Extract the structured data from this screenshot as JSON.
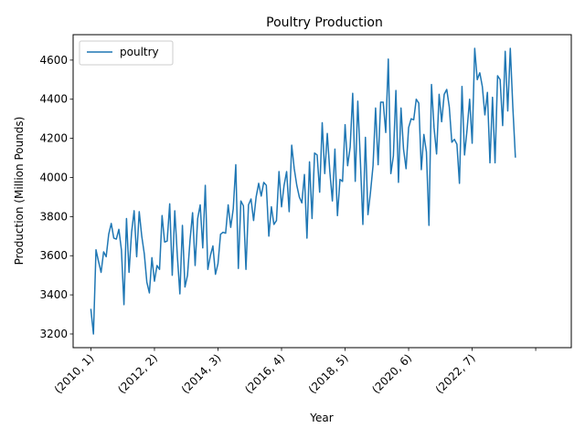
{
  "chart_data": {
    "type": "line",
    "title": "Poultry Production",
    "xlabel": "Year",
    "ylabel": "Production (Million Pounds)",
    "ylim": [
      3130,
      4730
    ],
    "xlim": [
      -7,
      189
    ],
    "grid": false,
    "legend_position": "upper-left",
    "x_ticks": [
      {
        "pos": 0,
        "label": "(2010, 1)"
      },
      {
        "pos": 25,
        "label": "(2012, 2)"
      },
      {
        "pos": 50,
        "label": "(2014, 3)"
      },
      {
        "pos": 75,
        "label": "(2016, 4)"
      },
      {
        "pos": 100,
        "label": "(2018, 5)"
      },
      {
        "pos": 125,
        "label": "(2020, 6)"
      },
      {
        "pos": 150,
        "label": "(2022, 7)"
      },
      {
        "pos": 175,
        "label": ""
      }
    ],
    "y_ticks": [
      3200,
      3400,
      3600,
      3800,
      4000,
      4200,
      4400,
      4600
    ],
    "series": [
      {
        "name": "poultry",
        "color": "#1f77b4",
        "values": [
          3325,
          3200,
          3630,
          3570,
          3515,
          3620,
          3595,
          3710,
          3765,
          3690,
          3685,
          3735,
          3630,
          3350,
          3790,
          3515,
          3720,
          3830,
          3595,
          3825,
          3700,
          3610,
          3465,
          3410,
          3590,
          3470,
          3550,
          3530,
          3805,
          3670,
          3675,
          3865,
          3500,
          3830,
          3600,
          3405,
          3755,
          3440,
          3500,
          3680,
          3820,
          3550,
          3790,
          3860,
          3640,
          3960,
          3530,
          3600,
          3650,
          3505,
          3560,
          3710,
          3720,
          3715,
          3860,
          3745,
          3840,
          4065,
          3535,
          3880,
          3855,
          3530,
          3860,
          3890,
          3780,
          3900,
          3970,
          3905,
          3975,
          3960,
          3700,
          3850,
          3760,
          3780,
          4030,
          3850,
          3960,
          4030,
          3825,
          4165,
          4045,
          3960,
          3900,
          3870,
          4015,
          3690,
          4080,
          3790,
          4125,
          4115,
          3925,
          4280,
          4020,
          4225,
          4030,
          3880,
          4145,
          3805,
          3990,
          3980,
          4270,
          4060,
          4155,
          4430,
          3980,
          4390,
          4090,
          3760,
          4205,
          3810,
          3925,
          4060,
          4355,
          4065,
          4385,
          4385,
          4230,
          4605,
          4020,
          4110,
          4445,
          3975,
          4355,
          4145,
          4045,
          4255,
          4300,
          4295,
          4400,
          4380,
          4040,
          4220,
          4130,
          3755,
          4475,
          4255,
          4120,
          4425,
          4285,
          4425,
          4450,
          4360,
          4180,
          4195,
          4170,
          3970,
          4465,
          4115,
          4245,
          4400,
          4175,
          4660,
          4500,
          4535,
          4465,
          4320,
          4435,
          4075,
          4410,
          4075,
          4520,
          4500,
          4265,
          4645,
          4340,
          4660,
          4360,
          4105
        ]
      }
    ]
  }
}
